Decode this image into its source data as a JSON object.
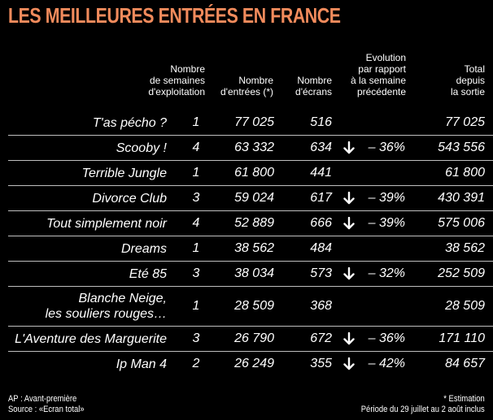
{
  "title": "LES MEILLEURES ENTRÉES EN FRANCE",
  "headers": {
    "weeks": [
      "Nombre",
      "de semaines",
      "d'exploitation"
    ],
    "entries": [
      "Nombre",
      "d'entrées (*)"
    ],
    "screens": [
      "Nombre",
      "d'écrans"
    ],
    "evolution": [
      "Evolution",
      "par rapport",
      "à la semaine",
      "précédente"
    ],
    "total": [
      "Total",
      "depuis",
      "la sortie"
    ]
  },
  "rows": [
    {
      "title": "T'as pécho ?",
      "weeks": "1",
      "entries": "77 025",
      "screens": "516",
      "evolution": "",
      "total": "77 025"
    },
    {
      "title": "Scooby !",
      "weeks": "4",
      "entries": "63 332",
      "screens": "634",
      "evolution": "– 36%",
      "total": "543 556"
    },
    {
      "title": "Terrible Jungle",
      "weeks": "1",
      "entries": "61 800",
      "screens": "441",
      "evolution": "",
      "total": "61 800"
    },
    {
      "title": "Divorce Club",
      "weeks": "3",
      "entries": "59 024",
      "screens": "617",
      "evolution": "– 39%",
      "total": "430 391"
    },
    {
      "title": "Tout simplement noir",
      "weeks": "4",
      "entries": "52 889",
      "screens": "666",
      "evolution": "– 39%",
      "total": "575 006"
    },
    {
      "title": "Dreams",
      "weeks": "1",
      "entries": "38 562",
      "screens": "484",
      "evolution": "",
      "total": "38 562"
    },
    {
      "title": "Eté 85",
      "weeks": "3",
      "entries": "38 034",
      "screens": "573",
      "evolution": "– 32%",
      "total": "252 509"
    },
    {
      "title": "Blanche Neige, les souliers rouges…",
      "title_lines": [
        "Blanche Neige,",
        "les souliers rouges…"
      ],
      "weeks": "1",
      "entries": "28 509",
      "screens": "368",
      "evolution": "",
      "total": "28 509"
    },
    {
      "title": "L'Aventure des Marguerite",
      "weeks": "3",
      "entries": "26 790",
      "screens": "672",
      "evolution": "– 36%",
      "total": "171 110"
    },
    {
      "title": "Ip Man 4",
      "weeks": "2",
      "entries": "26 249",
      "screens": "355",
      "evolution": "– 42%",
      "total": "84 657"
    }
  ],
  "footer": {
    "left": [
      "AP : Avant-première",
      "Source : «Ecran total»"
    ],
    "right": [
      "* Estimation",
      "Période du 29 juillet au 2 août inclus"
    ]
  },
  "colors": {
    "title": "#f28b5c",
    "background": "#000000",
    "text": "#ffffff",
    "rule": "#bfbfbf"
  }
}
